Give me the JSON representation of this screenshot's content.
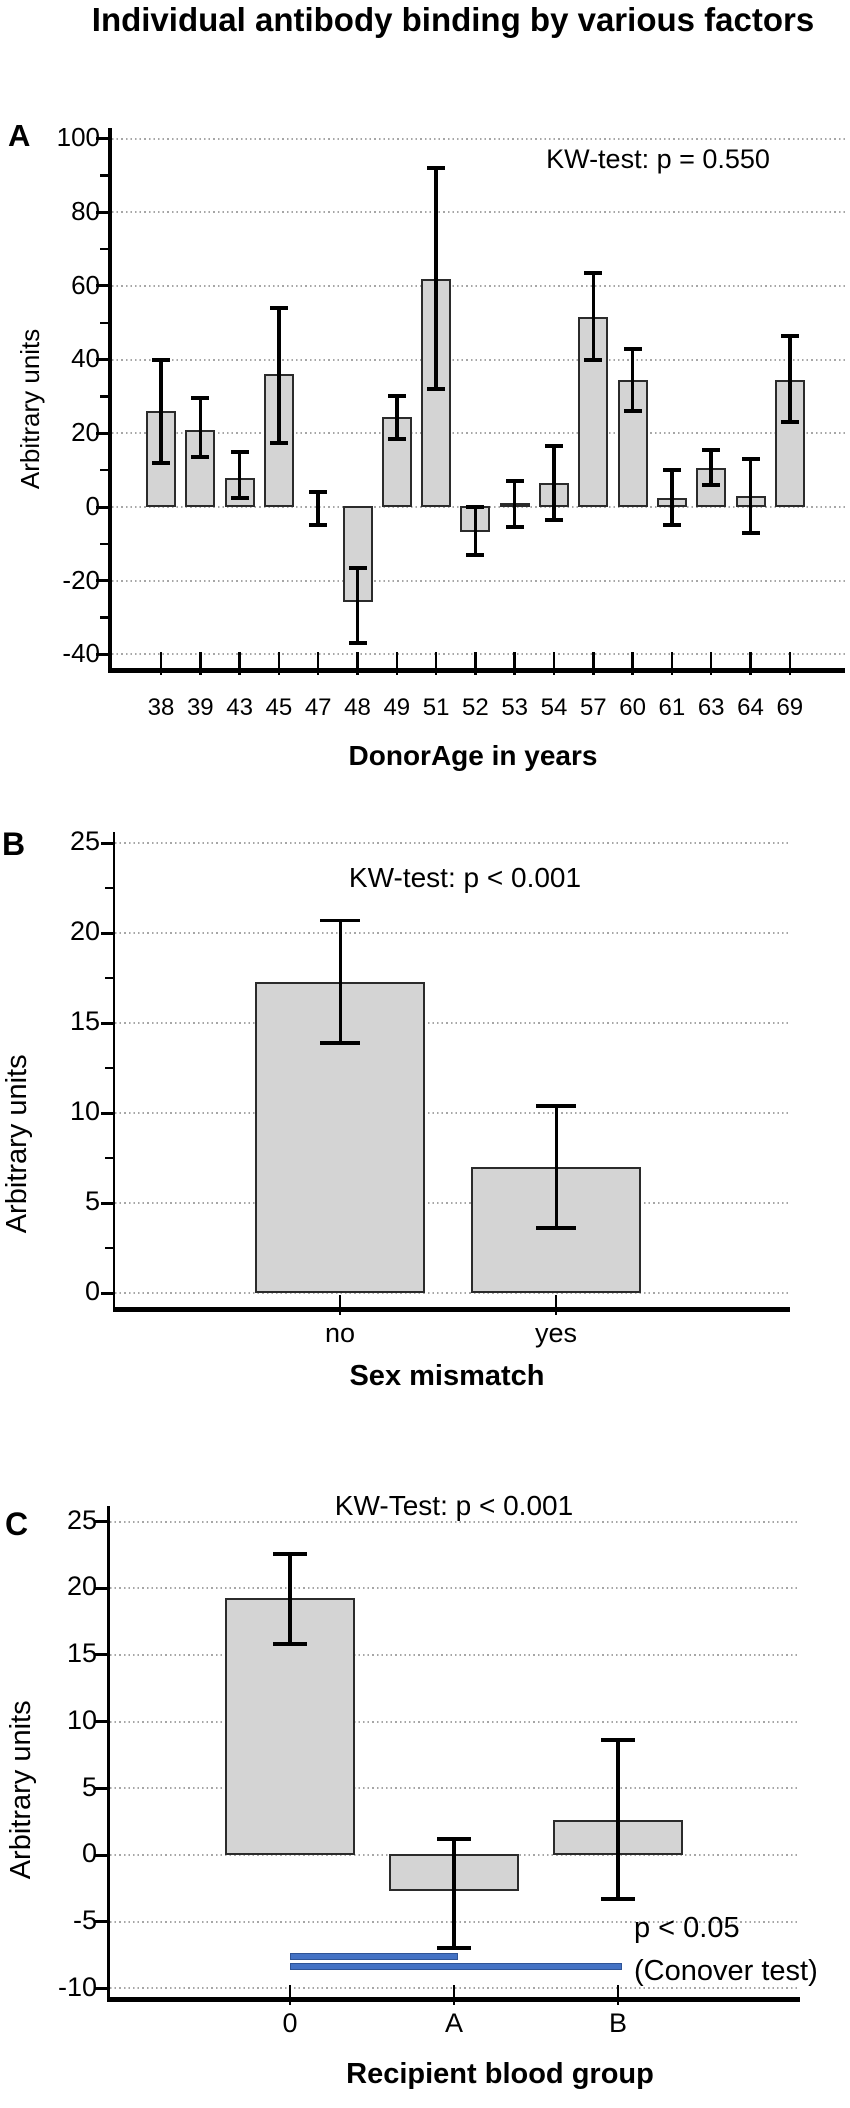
{
  "title": "Individual antibody binding by various factors",
  "colors": {
    "bar_fill": "#d4d4d4",
    "bar_border": "#2b2b2b",
    "error_bar": "#000000",
    "gridline": "#a6a6a6",
    "axis": "#000000",
    "significance_fill": "#4472c4",
    "significance_border": "#2f5496"
  },
  "chart_data": [
    {
      "type": "bar",
      "panel": "A",
      "annotation": "KW-test: p = 0.550",
      "xlabel": "DonorAge in years",
      "ylabel": "Arbitrary units",
      "categories": [
        "38",
        "39",
        "43",
        "45",
        "47",
        "48",
        "49",
        "51",
        "52",
        "53",
        "54",
        "57",
        "60",
        "61",
        "63",
        "64",
        "69"
      ],
      "values": [
        26,
        21,
        8,
        36,
        0,
        -26,
        24.5,
        62,
        -7,
        1,
        6.5,
        51.5,
        34.5,
        2.5,
        10.5,
        3,
        34.5
      ],
      "err_low": [
        12,
        13.5,
        2.5,
        17.5,
        -5,
        -37,
        18.5,
        32,
        -13,
        -5.5,
        -3.5,
        40,
        26,
        -5,
        6,
        -7,
        23
      ],
      "err_high": [
        40,
        29.5,
        15,
        54,
        4,
        -16.5,
        30,
        92,
        0,
        7,
        16.5,
        63.5,
        43,
        10,
        15.5,
        13,
        46.5
      ],
      "yticks": [
        100,
        80,
        60,
        40,
        20,
        0,
        -20,
        -40
      ],
      "ylim": [
        -44,
        103
      ],
      "grid": "horizontal dotted",
      "legend": "none"
    },
    {
      "type": "bar",
      "panel": "B",
      "annotation": "KW-test: p < 0.001",
      "xlabel": "Sex mismatch",
      "ylabel": "Arbitrary units",
      "categories": [
        "no",
        "yes"
      ],
      "values": [
        17.3,
        7.0
      ],
      "err_low": [
        13.9,
        3.6
      ],
      "err_high": [
        20.7,
        10.4
      ],
      "yticks": [
        25,
        20,
        15,
        10,
        5,
        0
      ],
      "ylim": [
        -0.8,
        25.6
      ],
      "grid": "horizontal dotted",
      "legend": "none"
    },
    {
      "type": "bar",
      "panel": "C",
      "annotation": "KW-Test: p < 0.001",
      "xlabel": "Recipient blood group",
      "ylabel": "Arbitrary units",
      "categories": [
        "0",
        "A",
        "B"
      ],
      "values": [
        19.3,
        -2.8,
        2.6
      ],
      "err_low": [
        15.8,
        -7.0,
        -3.3
      ],
      "err_high": [
        22.6,
        1.2,
        8.6
      ],
      "yticks": [
        25,
        20,
        15,
        10,
        5,
        0,
        -5,
        -10
      ],
      "ylim": [
        -10.7,
        25.6
      ],
      "grid": "horizontal dotted",
      "legend": "none",
      "significance": {
        "label_line1": "p < 0.05",
        "label_line2": "(Conover test)",
        "lines": [
          {
            "from": "0",
            "to": "A"
          },
          {
            "from": "0",
            "to": "B"
          }
        ]
      }
    }
  ]
}
